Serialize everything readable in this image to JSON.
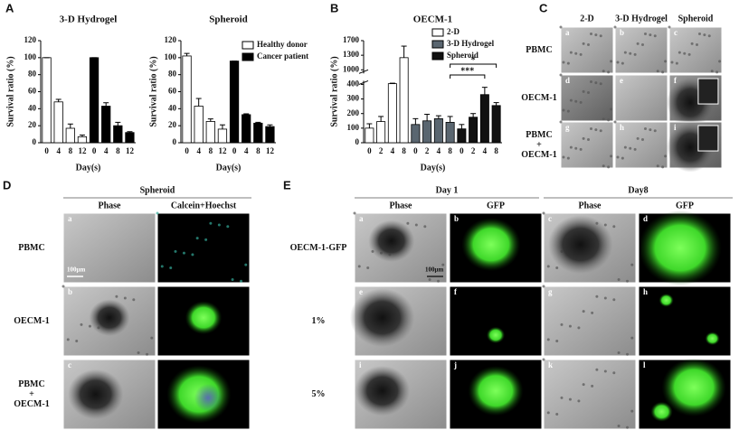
{
  "chart_data": [
    {
      "type": "bar",
      "panel": "A",
      "title": "3-D Hydrogel",
      "y_label": "Survival ratio (%)",
      "x_label": "Day(s)",
      "categories": [
        "0",
        "4",
        "8",
        "12",
        "0",
        "4",
        "8",
        "12"
      ],
      "series": [
        {
          "name": "Healthy donor",
          "color": "#ffffff",
          "values": [
            100,
            48,
            17,
            7,
            null,
            null,
            null,
            null
          ],
          "errors": [
            0,
            3,
            5,
            2,
            null,
            null,
            null,
            null
          ]
        },
        {
          "name": "Cancer patient",
          "color": "#000000",
          "values": [
            null,
            null,
            null,
            null,
            100,
            43,
            20,
            12
          ],
          "errors": [
            null,
            null,
            null,
            null,
            0,
            4,
            4,
            1
          ]
        }
      ],
      "ylim": [
        0,
        120
      ],
      "yticks": [
        0,
        20,
        40,
        60,
        80,
        100,
        120
      ],
      "legend": false
    },
    {
      "type": "bar",
      "title": "Spheroid",
      "y_label": "Survival ratio (%)",
      "x_label": "Day(s)",
      "categories": [
        "0",
        "4",
        "8",
        "12",
        "0",
        "4",
        "8",
        "12"
      ],
      "series": [
        {
          "name": "Healthy donor",
          "color": "#ffffff",
          "values": [
            102,
            43,
            25,
            16,
            null,
            null,
            null,
            null
          ],
          "errors": [
            3,
            9,
            3,
            5,
            null,
            null,
            null,
            null
          ]
        },
        {
          "name": "Cancer patient",
          "color": "#000000",
          "values": [
            null,
            null,
            null,
            null,
            96,
            33,
            23,
            19
          ],
          "errors": [
            null,
            null,
            null,
            null,
            0,
            1,
            1,
            2
          ]
        }
      ],
      "ylim": [
        0,
        120
      ],
      "yticks": [
        0,
        20,
        40,
        60,
        80,
        100,
        120
      ],
      "legend": true
    },
    {
      "type": "bar",
      "panel": "B",
      "title": "OECM-1",
      "y_label": "Survival ratio (%)",
      "x_label": "Day(s)",
      "categories": [
        "0",
        "2",
        "4",
        "8",
        "0",
        "2",
        "4",
        "8",
        "0",
        "2",
        "4",
        "8"
      ],
      "series": [
        {
          "name": "2-D",
          "color": "#ffffff",
          "values": [
            100,
            145,
            430,
            1250,
            null,
            null,
            null,
            null,
            null,
            null,
            null,
            null
          ],
          "errors": [
            30,
            35,
            20,
            300,
            null,
            null,
            null,
            null,
            null,
            null,
            null,
            null
          ]
        },
        {
          "name": "3-D Hydrogel",
          "color": "#5a6670",
          "values": [
            null,
            null,
            null,
            null,
            125,
            150,
            165,
            140,
            null,
            null,
            null,
            null
          ],
          "errors": [
            null,
            null,
            null,
            null,
            40,
            45,
            20,
            40,
            null,
            null,
            null,
            null
          ]
        },
        {
          "name": "Spheroid",
          "color": "#111111",
          "values": [
            null,
            null,
            null,
            null,
            null,
            null,
            null,
            null,
            95,
            175,
            330,
            255
          ],
          "errors": [
            null,
            null,
            null,
            null,
            null,
            null,
            null,
            null,
            30,
            25,
            50,
            20
          ]
        }
      ],
      "ylim": [
        0,
        1700
      ],
      "yticks": [
        0,
        100,
        200,
        300,
        400,
        1000,
        1300,
        1700
      ],
      "y_axis_break": true,
      "legend": true,
      "annotations": [
        "*",
        "***"
      ]
    }
  ],
  "panel_c": {
    "label": "C",
    "columns": [
      "2-D",
      "3-D Hydrogel",
      "Spheroid"
    ],
    "rows": [
      [
        "PBMC"
      ],
      [
        "OECM-1"
      ],
      [
        "PBMC",
        "+",
        "OECM-1"
      ]
    ],
    "letters": [
      "a",
      "b",
      "c",
      "d",
      "e",
      "f",
      "g",
      "h",
      "i"
    ]
  },
  "panel_d": {
    "label": "D",
    "header": "Spheroid",
    "columns": [
      "Phase",
      "Calcein+Hoechst"
    ],
    "rows": [
      [
        "PBMC"
      ],
      [
        "OECM-1"
      ],
      [
        "PBMC",
        "+",
        "OECM-1"
      ]
    ],
    "letters": [
      "a",
      "b",
      "c"
    ],
    "scale_bar": "100μm"
  },
  "panel_e": {
    "label": "E",
    "groups": [
      "Day 1",
      "Day8"
    ],
    "columns": [
      "Phase",
      "GFP",
      "Phase",
      "GFP"
    ],
    "rows": [
      [
        "OECM-1-GFP"
      ],
      [
        "1%"
      ],
      [
        "5%"
      ]
    ],
    "letters": [
      "a",
      "b",
      "c",
      "d",
      "e",
      "f",
      "g",
      "h",
      "i",
      "j",
      "k",
      "l"
    ],
    "scale_bar": "100μm"
  }
}
